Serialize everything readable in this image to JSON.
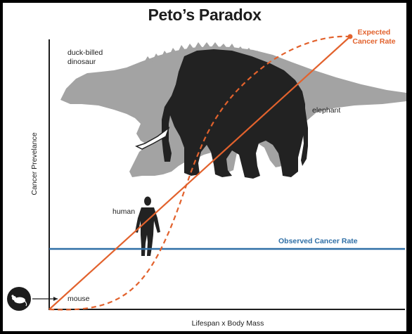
{
  "title": "Peto’s Paradox",
  "axes": {
    "ylabel": "Cancer Prevelance",
    "xlabel": "Lifespan x Body Mass"
  },
  "animals": {
    "dinosaur": "duck-billed dinosaur",
    "dinosaur_line1": "duck-billed",
    "dinosaur_line2": "dinosaur",
    "elephant": "elephant",
    "human": "human",
    "mouse": "mouse"
  },
  "legend": {
    "expected_line1": "Expected",
    "expected_line2": "Cancer Rate",
    "observed": "Observed Cancer Rate"
  },
  "colors": {
    "expected": "#e2622d",
    "observed": "#2f6fa6",
    "dinosaur": "#a3a3a3",
    "elephant": "#222222",
    "text": "#1d1d1d"
  },
  "icons": [
    "dinosaur-silhouette-icon",
    "elephant-silhouette-icon",
    "human-silhouette-icon",
    "mouse-icon",
    "arrow-icon"
  ]
}
